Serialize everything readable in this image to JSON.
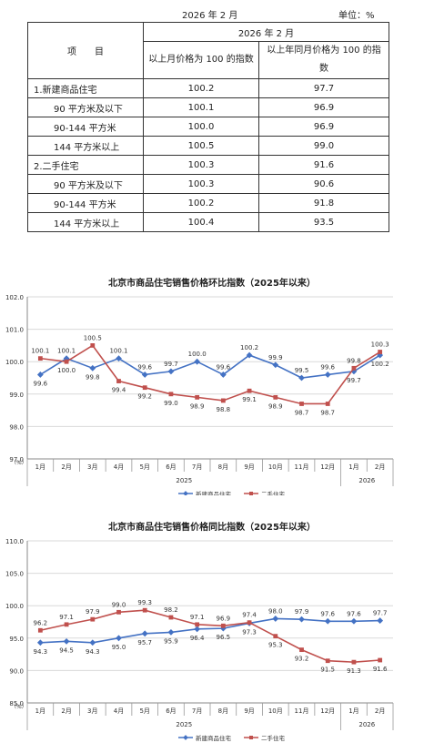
{
  "header": {
    "date": "2026 年 2 月",
    "unit": "单位：%"
  },
  "table": {
    "item_header": "项　　目",
    "period": "2026 年 2 月",
    "col1": "以上月价格为 100 的指数",
    "col2": "以上年同月价格为 100 的指数",
    "rows": [
      {
        "label": "1.新建商品住宅",
        "mom": "100.2",
        "yoy": "97.7"
      },
      {
        "label": "90 平方米及以下",
        "mom": "100.1",
        "yoy": "96.9"
      },
      {
        "label": "90-144 平方米",
        "mom": "100.0",
        "yoy": "96.9"
      },
      {
        "label": "144 平方米以上",
        "mom": "100.5",
        "yoy": "99.0"
      },
      {
        "label": "2.二手住宅",
        "mom": "100.3",
        "yoy": "91.6"
      },
      {
        "label": "90 平方米及以下",
        "mom": "100.3",
        "yoy": "90.6"
      },
      {
        "label": "90-144 平方米",
        "mom": "100.2",
        "yoy": "91.8"
      },
      {
        "label": "144 平方米以上",
        "mom": "100.4",
        "yoy": "93.5"
      }
    ]
  },
  "chart_data": [
    {
      "type": "line",
      "title": "北京市商品住宅销售价格环比指数（2025年以来）",
      "categories": [
        "1月",
        "2月",
        "3月",
        "4月",
        "5月",
        "6月",
        "7月",
        "8月",
        "9月",
        "10月",
        "11月",
        "12月",
        "1月",
        "2月"
      ],
      "year_labels": [
        "2025",
        "2026"
      ],
      "unit_label": "（%）",
      "ylim": [
        97.0,
        102.0
      ],
      "yticks": [
        "97.0",
        "98.0",
        "99.0",
        "100.0",
        "101.0",
        "102.0"
      ],
      "series": [
        {
          "name": "新建商品住宅",
          "color": "#4472c4",
          "values": [
            99.6,
            100.1,
            99.8,
            100.1,
            99.6,
            99.7,
            100.0,
            99.6,
            100.2,
            99.9,
            99.5,
            99.6,
            99.7,
            100.2
          ],
          "labels": [
            "99.6",
            "100.1",
            "99.8",
            "100.1",
            "99.6",
            "99.7",
            "100.0",
            "99.6",
            "100.2",
            "99.9",
            "99.5",
            "99.6",
            "99.7",
            "100.2"
          ],
          "label_pos": [
            "b",
            "a",
            "b",
            "a",
            "a",
            "a",
            "a",
            "a",
            "a",
            "a",
            "a",
            "a",
            "b",
            "b"
          ]
        },
        {
          "name": "二手住宅",
          "color": "#c0504d",
          "values": [
            100.1,
            100.0,
            100.5,
            99.4,
            99.2,
            99.0,
            98.9,
            98.8,
            99.1,
            98.9,
            98.7,
            98.7,
            99.8,
            100.3
          ],
          "labels": [
            "100.1",
            "100.0",
            "100.5",
            "99.4",
            "99.2",
            "99.0",
            "98.9",
            "98.8",
            "99.1",
            "98.9",
            "98.7",
            "98.7",
            "99.8",
            "100.3"
          ],
          "label_pos": [
            "a",
            "b",
            "a",
            "b",
            "b",
            "b",
            "b",
            "b",
            "b",
            "b",
            "b",
            "b",
            "a",
            "a"
          ]
        }
      ]
    },
    {
      "type": "line",
      "title": "北京市商品住宅销售价格同比指数（2025年以来）",
      "categories": [
        "1月",
        "2月",
        "3月",
        "4月",
        "5月",
        "6月",
        "7月",
        "8月",
        "9月",
        "10月",
        "11月",
        "12月",
        "1月",
        "2月"
      ],
      "year_labels": [
        "2025",
        "2026"
      ],
      "unit_label": "（%）",
      "ylim": [
        85.0,
        110.0
      ],
      "yticks": [
        "85.0",
        "90.0",
        "95.0",
        "100.0",
        "105.0",
        "110.0"
      ],
      "series": [
        {
          "name": "新建商品住宅",
          "color": "#4472c4",
          "values": [
            94.3,
            94.5,
            94.3,
            95.0,
            95.7,
            95.9,
            96.4,
            96.5,
            97.3,
            98.0,
            97.9,
            97.6,
            97.6,
            97.7
          ],
          "labels": [
            "94.3",
            "94.5",
            "94.3",
            "95.0",
            "95.7",
            "95.9",
            "96.4",
            "96.5",
            "97.3",
            "98.0",
            "97.9",
            "97.6",
            "97.6",
            "97.7"
          ],
          "label_pos": [
            "b",
            "b",
            "b",
            "b",
            "b",
            "b",
            "b",
            "b",
            "b",
            "a",
            "a",
            "a",
            "a",
            "a"
          ]
        },
        {
          "name": "二手住宅",
          "color": "#c0504d",
          "values": [
            96.2,
            97.1,
            97.9,
            99.0,
            99.3,
            98.2,
            97.1,
            96.9,
            97.4,
            95.3,
            93.2,
            91.5,
            91.3,
            91.6
          ],
          "labels": [
            "96.2",
            "97.1",
            "97.9",
            "99.0",
            "99.3",
            "98.2",
            "97.1",
            "96.9",
            "97.4",
            "95.3",
            "93.2",
            "91.5",
            "91.3",
            "91.6"
          ],
          "label_pos": [
            "a",
            "a",
            "a",
            "a",
            "a",
            "a",
            "a",
            "a",
            "a",
            "b",
            "b",
            "b",
            "b",
            "b"
          ]
        }
      ]
    }
  ]
}
